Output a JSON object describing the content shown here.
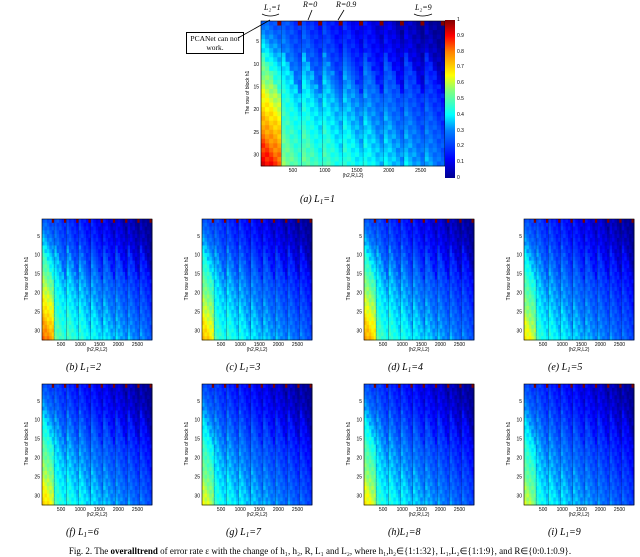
{
  "colorscale": {
    "stops": [
      "#00008f",
      "#0000ff",
      "#0080ff",
      "#00ffff",
      "#80ff80",
      "#ffff00",
      "#ff8000",
      "#ff0000",
      "#800000"
    ],
    "ticks": [
      "1",
      "0.9",
      "0.8",
      "0.7",
      "0.6",
      "0.5",
      "0.4",
      "0.3",
      "0.2",
      "0.1",
      "0"
    ]
  },
  "axes": {
    "ylabel": "The row of block h1",
    "xlabel": "(h2,R,L2)",
    "yticks": [
      "5",
      "10",
      "15",
      "20",
      "25",
      "30"
    ],
    "xticks": [
      "500",
      "1000",
      "1500",
      "2000",
      "2500"
    ]
  },
  "main_annotations": {
    "l2_first": "L₂=1",
    "r0": "R=0",
    "r09": "R=0.9",
    "l2_last": "L₂=9",
    "callout": "PCANet can not work."
  },
  "panels": [
    {
      "id": "a",
      "caption_prefix": "(a) L",
      "sub": "1",
      "caption_suffix": "=1",
      "intensity": 1.0
    },
    {
      "id": "b",
      "caption_prefix": "(b) L",
      "sub": "1",
      "caption_suffix": "=2",
      "intensity": 0.85
    },
    {
      "id": "c",
      "caption_prefix": "(c) L",
      "sub": "1",
      "caption_suffix": "=3",
      "intensity": 0.7
    },
    {
      "id": "d",
      "caption_prefix": "(d) L",
      "sub": "1",
      "caption_suffix": "=4",
      "intensity": 0.75
    },
    {
      "id": "e",
      "caption_prefix": "(e) L",
      "sub": "1",
      "caption_suffix": "=5",
      "intensity": 0.6
    },
    {
      "id": "f",
      "caption_prefix": "(f) L",
      "sub": "1",
      "caption_suffix": "=6",
      "intensity": 0.65
    },
    {
      "id": "g",
      "caption_prefix": "(g) L",
      "sub": "1",
      "caption_suffix": "=7",
      "intensity": 0.55
    },
    {
      "id": "h",
      "caption_prefix": "(h)L",
      "sub": "1",
      "caption_suffix": "=8",
      "intensity": 0.6
    },
    {
      "id": "i",
      "caption_prefix": "(i) L",
      "sub": "1",
      "caption_suffix": "=9",
      "intensity": 0.5
    }
  ],
  "figure_caption": {
    "prefix": "Fig. 2. The ",
    "bold": "overalltrend",
    "suffix": " of error rate ε with the change of h₁, h₂, R, L₁ and L₂, where h₁,h₂∈{1:1:32}, L₁,L₂∈{1:1:9}, and R∈{0:0.1:0.9}."
  }
}
